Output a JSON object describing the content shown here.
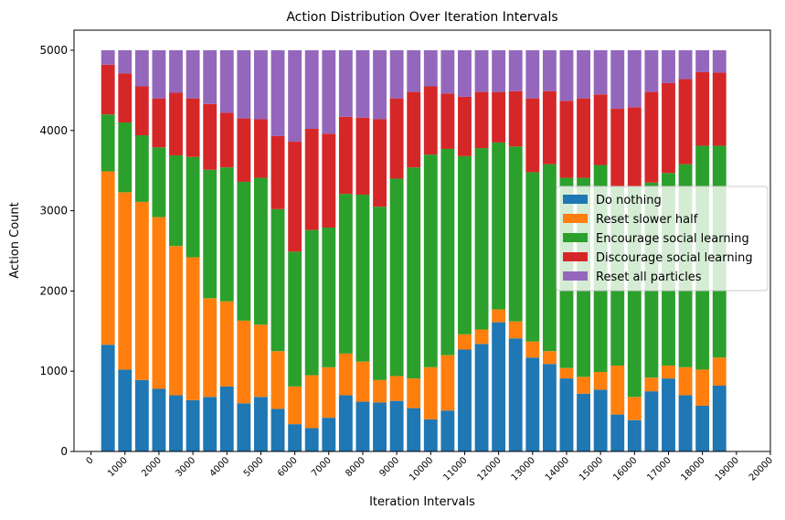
{
  "chart_data": {
    "type": "bar",
    "stacked": true,
    "title": "Action Distribution Over Iteration Intervals",
    "xlabel": "Iteration Intervals",
    "ylabel": "Action Count",
    "xlim": [
      -500,
      20000
    ],
    "ylim": [
      0,
      5250
    ],
    "x_ticks": [
      0,
      1000,
      2000,
      3000,
      4000,
      5000,
      6000,
      7000,
      8000,
      9000,
      10000,
      11000,
      12000,
      13000,
      14000,
      15000,
      16000,
      17000,
      18000,
      19000,
      20000
    ],
    "y_ticks": [
      0,
      1000,
      2000,
      3000,
      4000,
      5000
    ],
    "legend_position": "center-right",
    "x": [
      500,
      1000,
      1500,
      2000,
      2500,
      3000,
      3500,
      4000,
      4500,
      5000,
      5500,
      6000,
      6500,
      7000,
      7500,
      8000,
      8500,
      9000,
      9500,
      10000,
      10500,
      11000,
      11500,
      12000,
      12500,
      13000,
      13500,
      14000,
      14500,
      15000,
      15500,
      16000,
      16500,
      17000,
      17500,
      18000,
      18500
    ],
    "series": [
      {
        "name": "Do nothing",
        "color": "#1f77b4",
        "values": [
          1330,
          1020,
          890,
          780,
          700,
          640,
          680,
          810,
          600,
          680,
          530,
          340,
          290,
          420,
          700,
          620,
          610,
          630,
          540,
          400,
          510,
          1270,
          1340,
          1610,
          1410,
          1170,
          1090,
          910,
          720,
          770,
          460,
          390,
          750,
          910,
          700,
          570,
          820
        ]
      },
      {
        "name": "Reset slower half",
        "color": "#ff7f0e",
        "values": [
          2160,
          2210,
          2220,
          2140,
          1860,
          1780,
          1230,
          1060,
          1030,
          900,
          720,
          470,
          660,
          630,
          520,
          500,
          280,
          310,
          370,
          650,
          690,
          190,
          180,
          160,
          210,
          200,
          160,
          130,
          210,
          220,
          610,
          290,
          170,
          160,
          350,
          450,
          350
        ]
      },
      {
        "name": "Encourage social learning",
        "color": "#2ca02c",
        "values": [
          710,
          870,
          830,
          870,
          1130,
          1250,
          1600,
          1670,
          1730,
          1830,
          1770,
          1680,
          1810,
          1740,
          1990,
          2080,
          2160,
          2460,
          2630,
          2650,
          2570,
          2220,
          2260,
          2080,
          2180,
          2110,
          2330,
          2370,
          2480,
          2580,
          2230,
          2620,
          2430,
          2400,
          2530,
          2790,
          2640
        ]
      },
      {
        "name": "Discourage social learning",
        "color": "#d62728",
        "values": [
          620,
          610,
          610,
          610,
          780,
          730,
          820,
          680,
          790,
          730,
          910,
          1370,
          1260,
          1170,
          960,
          960,
          1090,
          1000,
          940,
          850,
          690,
          740,
          700,
          630,
          690,
          920,
          910,
          960,
          990,
          880,
          970,
          990,
          1130,
          1120,
          1060,
          920,
          910
        ]
      },
      {
        "name": "Reset all particles",
        "color": "#9467bd",
        "values": [
          180,
          290,
          450,
          600,
          530,
          600,
          670,
          780,
          850,
          860,
          1070,
          1140,
          980,
          1040,
          830,
          840,
          860,
          600,
          520,
          450,
          540,
          580,
          520,
          520,
          510,
          600,
          510,
          630,
          600,
          550,
          730,
          710,
          520,
          410,
          360,
          270,
          280
        ]
      }
    ]
  }
}
